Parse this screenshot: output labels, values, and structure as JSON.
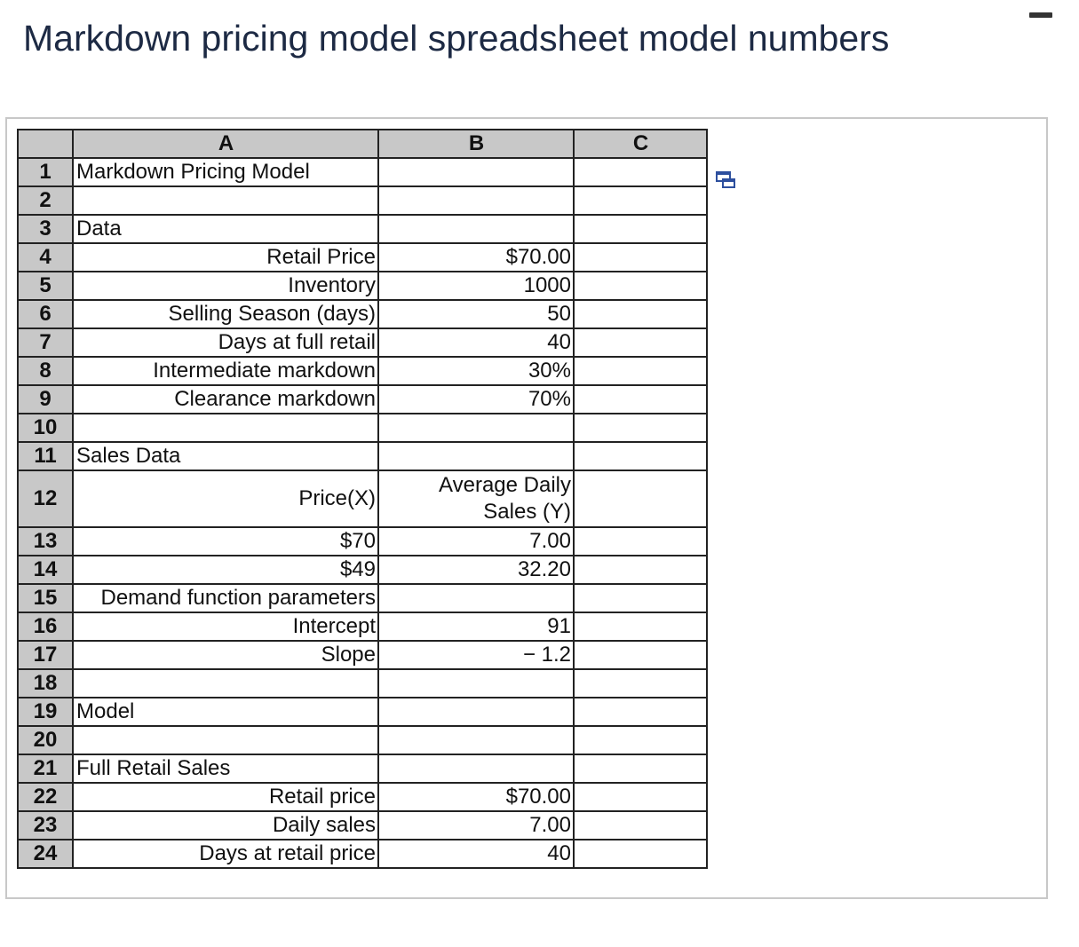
{
  "page_title": "Markdown pricing model spreadsheet model numbers",
  "columns": [
    "A",
    "B",
    "C"
  ],
  "rows": [
    {
      "num": "1",
      "a": "Markdown Pricing Model",
      "a_align": "left",
      "b": "",
      "c": ""
    },
    {
      "num": "2",
      "a": "",
      "a_align": "left",
      "b": "",
      "c": ""
    },
    {
      "num": "3",
      "a": "Data",
      "a_align": "left",
      "b": "",
      "c": ""
    },
    {
      "num": "4",
      "a": "Retail Price",
      "a_align": "right",
      "b": "$70.00",
      "c": ""
    },
    {
      "num": "5",
      "a": "Inventory",
      "a_align": "right",
      "b": "1000",
      "c": ""
    },
    {
      "num": "6",
      "a": "Selling Season (days)",
      "a_align": "right",
      "b": "50",
      "c": ""
    },
    {
      "num": "7",
      "a": "Days at full retail",
      "a_align": "right",
      "b": "40",
      "c": ""
    },
    {
      "num": "8",
      "a": "Intermediate markdown",
      "a_align": "right",
      "b": "30%",
      "c": ""
    },
    {
      "num": "9",
      "a": "Clearance markdown",
      "a_align": "right",
      "b": "70%",
      "c": ""
    },
    {
      "num": "10",
      "a": "",
      "a_align": "left",
      "b": "",
      "c": ""
    },
    {
      "num": "11",
      "a": "Sales Data",
      "a_align": "left",
      "b": "",
      "c": ""
    },
    {
      "num": "12",
      "a": "Price(X)",
      "a_align": "right",
      "b": "Average Daily Sales (Y)",
      "c": "",
      "tall": true
    },
    {
      "num": "13",
      "a": "$70",
      "a_align": "right",
      "b": "7.00",
      "c": ""
    },
    {
      "num": "14",
      "a": "$49",
      "a_align": "right",
      "b": "32.20",
      "c": ""
    },
    {
      "num": "15",
      "a": "Demand function parameters",
      "a_align": "right",
      "b": "",
      "c": ""
    },
    {
      "num": "16",
      "a": "Intercept",
      "a_align": "right",
      "b": "91",
      "c": ""
    },
    {
      "num": "17",
      "a": "Slope",
      "a_align": "right",
      "b": "− 1.2",
      "c": ""
    },
    {
      "num": "18",
      "a": "",
      "a_align": "left",
      "b": "",
      "c": ""
    },
    {
      "num": "19",
      "a": "Model",
      "a_align": "left",
      "b": "",
      "c": ""
    },
    {
      "num": "20",
      "a": "",
      "a_align": "left",
      "b": "",
      "c": ""
    },
    {
      "num": "21",
      "a": "Full Retail Sales",
      "a_align": "left",
      "b": "",
      "c": ""
    },
    {
      "num": "22",
      "a": "Retail price",
      "a_align": "right",
      "b": "$70.00",
      "c": ""
    },
    {
      "num": "23",
      "a": "Daily sales",
      "a_align": "right",
      "b": "7.00",
      "c": ""
    },
    {
      "num": "24",
      "a": "Days at retail price",
      "a_align": "right",
      "b": "40",
      "c": ""
    }
  ],
  "icons": {
    "minimize": "minimize-icon",
    "popout": "popout-window-icon"
  }
}
